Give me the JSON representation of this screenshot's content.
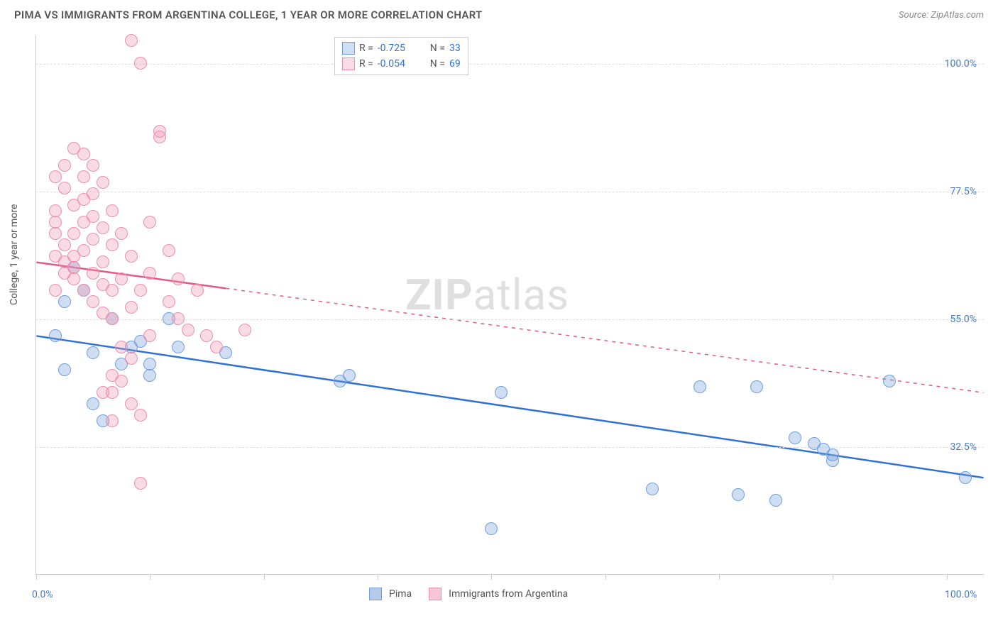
{
  "title": "PIMA VS IMMIGRANTS FROM ARGENTINA COLLEGE, 1 YEAR OR MORE CORRELATION CHART",
  "source": "Source: ZipAtlas.com",
  "y_axis_label": "College, 1 year or more",
  "watermark_bold": "ZIP",
  "watermark_light": "atlas",
  "chart": {
    "xlim": [
      0,
      100
    ],
    "ylim": [
      10,
      105
    ],
    "y_ticks": [
      {
        "v": 100.0,
        "label": "100.0%"
      },
      {
        "v": 77.5,
        "label": "77.5%"
      },
      {
        "v": 55.0,
        "label": "55.0%"
      },
      {
        "v": 32.5,
        "label": "32.5%"
      }
    ],
    "x_tick_positions": [
      0,
      12,
      24,
      36,
      48,
      60,
      72,
      84,
      96
    ],
    "x_labels": [
      {
        "v": 0,
        "label": "0.0%"
      },
      {
        "v": 100,
        "label": "100.0%"
      }
    ],
    "grid_color": "#dddddd",
    "background": "#ffffff",
    "point_radius": 9,
    "series": [
      {
        "name": "Pima",
        "fill": "rgba(120,160,220,0.35)",
        "stroke": "#6f9edb",
        "trend_color": "#2f72d4",
        "trend_y_at_x0": 52,
        "trend_y_at_x100": 27,
        "solid_to_x": 100,
        "R": "-0.725",
        "N": "33",
        "points": [
          [
            2,
            52
          ],
          [
            3,
            58
          ],
          [
            3,
            46
          ],
          [
            4,
            64
          ],
          [
            5,
            60
          ],
          [
            6,
            49
          ],
          [
            6,
            40
          ],
          [
            7,
            37
          ],
          [
            8,
            55
          ],
          [
            9,
            47
          ],
          [
            10,
            50
          ],
          [
            11,
            51
          ],
          [
            12,
            45
          ],
          [
            12,
            47
          ],
          [
            14,
            55
          ],
          [
            15,
            50
          ],
          [
            20,
            49
          ],
          [
            32,
            44
          ],
          [
            33,
            45
          ],
          [
            48,
            18
          ],
          [
            49,
            42
          ],
          [
            65,
            25
          ],
          [
            70,
            43
          ],
          [
            74,
            24
          ],
          [
            76,
            43
          ],
          [
            78,
            23
          ],
          [
            80,
            34
          ],
          [
            82,
            33
          ],
          [
            83,
            32
          ],
          [
            84,
            31
          ],
          [
            84,
            30
          ],
          [
            90,
            44
          ],
          [
            98,
            27
          ]
        ]
      },
      {
        "name": "Immigrants from Argentina",
        "fill": "rgba(240,150,175,0.35)",
        "stroke": "#e98fae",
        "trend_color": "#e05a87",
        "trend_y_at_x0": 65,
        "trend_y_at_x100": 42,
        "solid_to_x": 20,
        "R": "-0.054",
        "N": "69",
        "points": [
          [
            2,
            66
          ],
          [
            2,
            70
          ],
          [
            2,
            72
          ],
          [
            2,
            74
          ],
          [
            2,
            80
          ],
          [
            2,
            60
          ],
          [
            3,
            63
          ],
          [
            3,
            65
          ],
          [
            3,
            68
          ],
          [
            3,
            78
          ],
          [
            3,
            82
          ],
          [
            4,
            62
          ],
          [
            4,
            64
          ],
          [
            4,
            66
          ],
          [
            4,
            70
          ],
          [
            4,
            75
          ],
          [
            4,
            85
          ],
          [
            5,
            60
          ],
          [
            5,
            67
          ],
          [
            5,
            72
          ],
          [
            5,
            76
          ],
          [
            5,
            80
          ],
          [
            5,
            84
          ],
          [
            6,
            58
          ],
          [
            6,
            63
          ],
          [
            6,
            69
          ],
          [
            6,
            73
          ],
          [
            6,
            77
          ],
          [
            6,
            82
          ],
          [
            7,
            56
          ],
          [
            7,
            61
          ],
          [
            7,
            65
          ],
          [
            7,
            71
          ],
          [
            7,
            79
          ],
          [
            8,
            55
          ],
          [
            8,
            60
          ],
          [
            8,
            68
          ],
          [
            8,
            74
          ],
          [
            8,
            45
          ],
          [
            8,
            42
          ],
          [
            9,
            44
          ],
          [
            9,
            50
          ],
          [
            9,
            62
          ],
          [
            9,
            70
          ],
          [
            10,
            48
          ],
          [
            10,
            57
          ],
          [
            10,
            66
          ],
          [
            10,
            40
          ],
          [
            10,
            104
          ],
          [
            11,
            100
          ],
          [
            11,
            60
          ],
          [
            11,
            38
          ],
          [
            11,
            26
          ],
          [
            12,
            52
          ],
          [
            12,
            63
          ],
          [
            12,
            72
          ],
          [
            13,
            87
          ],
          [
            13,
            88
          ],
          [
            14,
            58
          ],
          [
            14,
            67
          ],
          [
            15,
            55
          ],
          [
            15,
            62
          ],
          [
            16,
            53
          ],
          [
            17,
            60
          ],
          [
            18,
            52
          ],
          [
            19,
            50
          ],
          [
            22,
            53
          ],
          [
            7,
            42
          ],
          [
            8,
            37
          ]
        ]
      }
    ],
    "stat_label_R": "R =",
    "stat_label_N": "N =",
    "stat_value_color": "#2f72d4",
    "stat_label_color": "#555555"
  },
  "legend_bottom": {
    "items": [
      {
        "label": "Pima",
        "fill": "rgba(120,160,220,0.55)",
        "stroke": "#6f9edb"
      },
      {
        "label": "Immigrants from Argentina",
        "fill": "rgba(240,150,175,0.55)",
        "stroke": "#e98fae"
      }
    ]
  }
}
